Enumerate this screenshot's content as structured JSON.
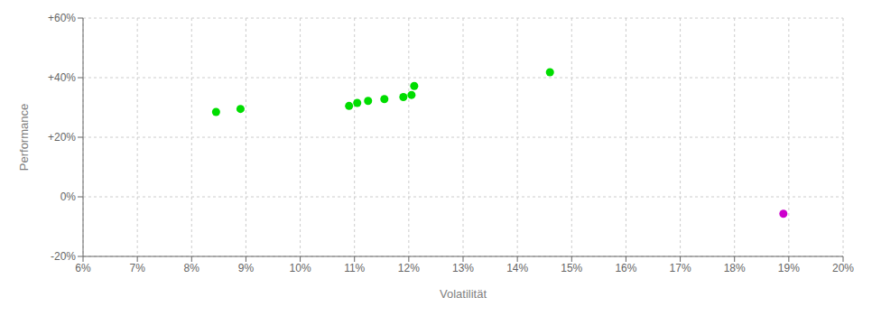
{
  "chart_data": {
    "type": "scatter",
    "xlabel": "Volatilität",
    "ylabel": "Performance",
    "xlim": [
      0.06,
      0.2
    ],
    "ylim": [
      -0.2,
      0.6
    ],
    "xticks": [
      {
        "value": 0.06,
        "label": "6%"
      },
      {
        "value": 0.07,
        "label": "7%"
      },
      {
        "value": 0.08,
        "label": "8%"
      },
      {
        "value": 0.09,
        "label": "9%"
      },
      {
        "value": 0.1,
        "label": "10%"
      },
      {
        "value": 0.11,
        "label": "11%"
      },
      {
        "value": 0.12,
        "label": "12%"
      },
      {
        "value": 0.13,
        "label": "13%"
      },
      {
        "value": 0.14,
        "label": "14%"
      },
      {
        "value": 0.15,
        "label": "15%"
      },
      {
        "value": 0.16,
        "label": "16%"
      },
      {
        "value": 0.17,
        "label": "17%"
      },
      {
        "value": 0.18,
        "label": "18%"
      },
      {
        "value": 0.19,
        "label": "19%"
      },
      {
        "value": 0.2,
        "label": "20%"
      }
    ],
    "yticks": [
      {
        "value": -0.2,
        "label": "-20%"
      },
      {
        "value": 0.0,
        "label": "0%"
      },
      {
        "value": 0.2,
        "label": "+20%"
      },
      {
        "value": 0.4,
        "label": "+40%"
      },
      {
        "value": 0.6,
        "label": "+60%"
      }
    ],
    "grid": true,
    "series": [
      {
        "color": "#00dd00",
        "x": [
          0.0845,
          0.089,
          0.109,
          0.1105,
          0.1125,
          0.1155,
          0.119,
          0.1205,
          0.121,
          0.146
        ],
        "y": [
          0.285,
          0.295,
          0.305,
          0.315,
          0.322,
          0.328,
          0.335,
          0.342,
          0.372,
          0.418
        ]
      },
      {
        "color": "#cc00cc",
        "x": [
          0.189
        ],
        "y": [
          -0.057
        ]
      }
    ]
  }
}
